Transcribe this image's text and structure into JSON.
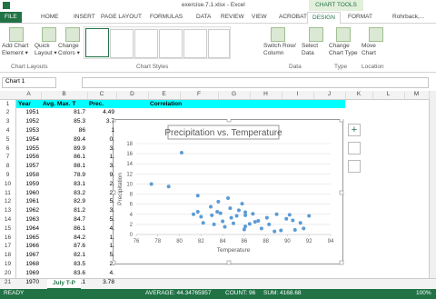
{
  "title_bar": {
    "file": "exercise.7.1.xlsx - Excel",
    "context": "CHART TOOLS"
  },
  "tabs": [
    "FILE",
    "HOME",
    "INSERT",
    "PAGE LAYOUT",
    "FORMULAS",
    "DATA",
    "REVIEW",
    "VIEW",
    "ACROBAT",
    "DESIGN",
    "FORMAT"
  ],
  "user": "Rohrback,...",
  "ribbon": {
    "buttons": [
      [
        "Add Chart",
        "Element ▾"
      ],
      [
        "Quick",
        "Layout ▾"
      ],
      [
        "Change",
        "Colors ▾"
      ],
      [
        "Switch Row/",
        "Column"
      ],
      [
        "Select",
        "Data"
      ],
      [
        "Change",
        "Chart Type"
      ],
      [
        "Move",
        "Chart"
      ]
    ],
    "groups": [
      "Chart Layouts",
      "Chart Styles",
      "Data",
      "Type",
      "Location"
    ]
  },
  "name_box": "Chart 1",
  "columns": [
    "A",
    "B",
    "C",
    "D",
    "E",
    "F",
    "G",
    "H",
    "I",
    "J",
    "K",
    "L",
    "M"
  ],
  "rows": [
    1,
    2,
    3,
    4,
    5,
    6,
    7,
    8,
    9,
    10,
    11,
    12,
    13,
    14,
    15,
    16,
    17,
    18,
    19,
    20,
    21
  ],
  "sheet": {
    "header": [
      "Year",
      "Avg. Max. T",
      "Prec.",
      "Correlation"
    ],
    "data": [
      [
        1951,
        81.7,
        "4.49"
      ],
      [
        1952,
        85.3,
        "3.7"
      ],
      [
        1953,
        86,
        "1"
      ],
      [
        1954,
        89.4,
        "0."
      ],
      [
        1955,
        89.9,
        "3."
      ],
      [
        1956,
        86.1,
        "1."
      ],
      [
        1957,
        88.1,
        "3."
      ],
      [
        1958,
        78.9,
        "9."
      ],
      [
        1959,
        83.1,
        "2."
      ],
      [
        1960,
        83.2,
        "2."
      ],
      [
        1961,
        82.9,
        "5."
      ],
      [
        1962,
        81.2,
        "3."
      ],
      [
        1963,
        84.7,
        "5."
      ],
      [
        1964,
        86.1,
        "4."
      ],
      [
        1965,
        84.2,
        "1."
      ],
      [
        1966,
        87.6,
        "1."
      ],
      [
        1967,
        82.1,
        "5."
      ],
      [
        1968,
        83.5,
        "2."
      ],
      [
        1969,
        83.6,
        "4."
      ],
      [
        1970,
        86.1,
        "3.78"
      ]
    ]
  },
  "sheet_tab": "July T-P",
  "status": {
    "mode": "READY",
    "average": "AVERAGE: 44.34765957",
    "count": "COUNT: 96",
    "sum": "SUM: 4168.68",
    "zoom": "100%"
  },
  "chart_data": {
    "type": "scatter",
    "title": "Precipitation vs. Temperature",
    "x_label": "Temperature",
    "y_label": "Precipitation",
    "color": "#5b9bd5",
    "x": [
      77.4,
      79,
      80.2,
      81.7,
      81.3,
      81.7,
      82,
      82.2,
      82.9,
      83,
      83.2,
      83.5,
      83.6,
      83.8,
      84,
      84.2,
      84.5,
      84.7,
      84.8,
      85,
      85.3,
      85.5,
      85.8,
      86,
      86.1,
      86.1,
      86.1,
      86.5,
      86.8,
      87,
      87.3,
      87.6,
      88.1,
      88.3,
      88.8,
      89,
      89.4,
      89.9,
      90.5,
      90.7,
      90.2,
      91.2,
      92,
      91.5
    ],
    "values": [
      10,
      9.5,
      16.2,
      7.7,
      4,
      4.5,
      3.5,
      2.3,
      5.5,
      3.8,
      2,
      4.5,
      6.5,
      4.2,
      2.6,
      1.5,
      7.2,
      5.2,
      3.3,
      2.2,
      3.7,
      4.8,
      6.1,
      1,
      4.4,
      1.6,
      3.8,
      2.1,
      4.1,
      2.5,
      2.7,
      1.2,
      3.3,
      2,
      0.6,
      4,
      0.8,
      3.1,
      2.8,
      0.9,
      3.9,
      2.3,
      3.7,
      1.2
    ],
    "xlim": [
      76,
      94
    ],
    "xticks": [
      76,
      78,
      80,
      82,
      84,
      86,
      88,
      90,
      92,
      94
    ],
    "ylim": [
      0,
      18
    ],
    "yticks": [
      0,
      2,
      4,
      6,
      8,
      10,
      12,
      14,
      16,
      18
    ],
    "grid": true
  }
}
